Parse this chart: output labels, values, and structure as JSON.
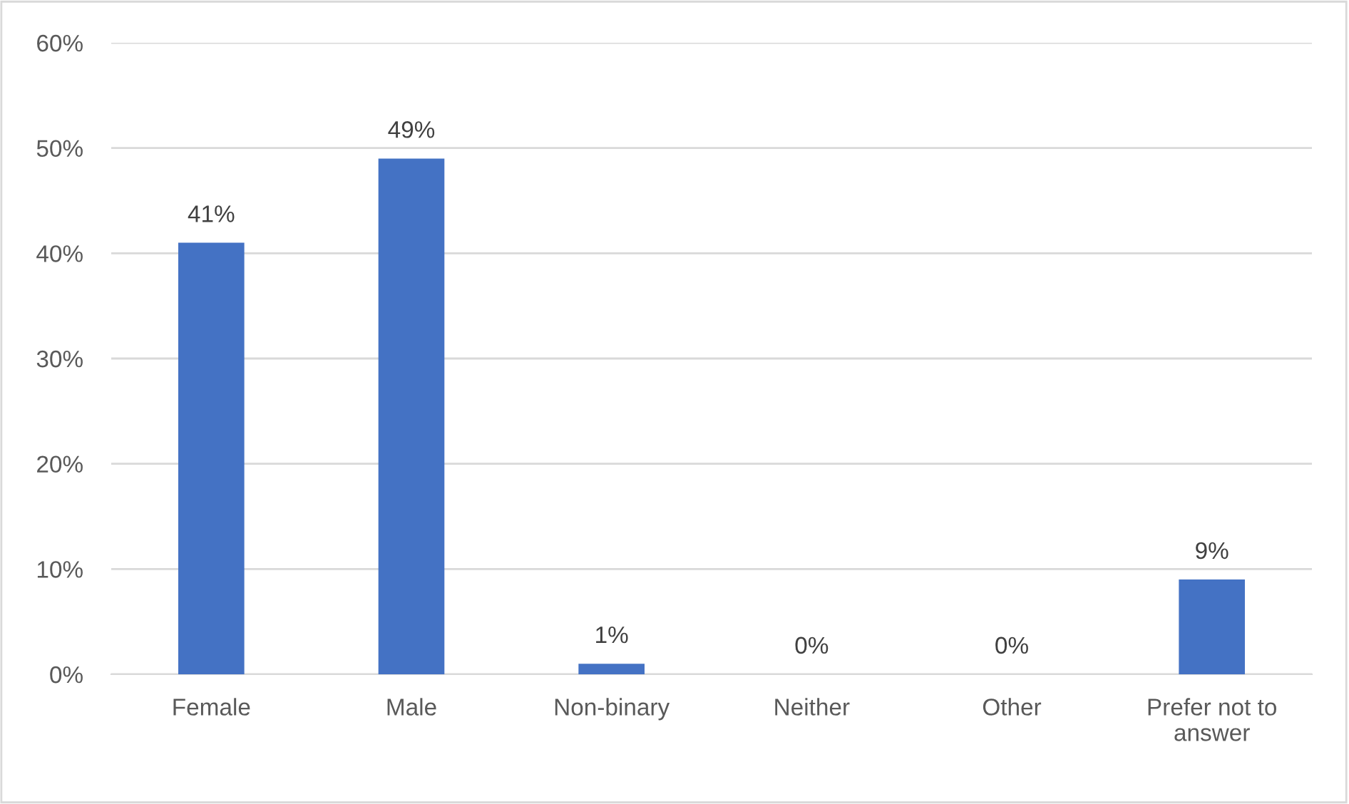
{
  "chart_data": {
    "type": "bar",
    "categories": [
      "Female",
      "Male",
      "Non-binary",
      "Neither",
      "Other",
      "Prefer not to\nanswer"
    ],
    "values": [
      41,
      49,
      1,
      0,
      0,
      9
    ],
    "value_labels": [
      "41%",
      "49%",
      "1%",
      "0%",
      "0%",
      "9%"
    ],
    "color": "#4472c4",
    "ylim": [
      0,
      60
    ],
    "yticks": [
      {
        "value": 0,
        "label": "0%"
      },
      {
        "value": 10,
        "label": "10%"
      },
      {
        "value": 20,
        "label": "20%"
      },
      {
        "value": 30,
        "label": "30%"
      },
      {
        "value": 40,
        "label": "40%"
      },
      {
        "value": 50,
        "label": "50%"
      },
      {
        "value": 60,
        "label": "60%"
      }
    ],
    "grid": "y",
    "legend": false
  }
}
